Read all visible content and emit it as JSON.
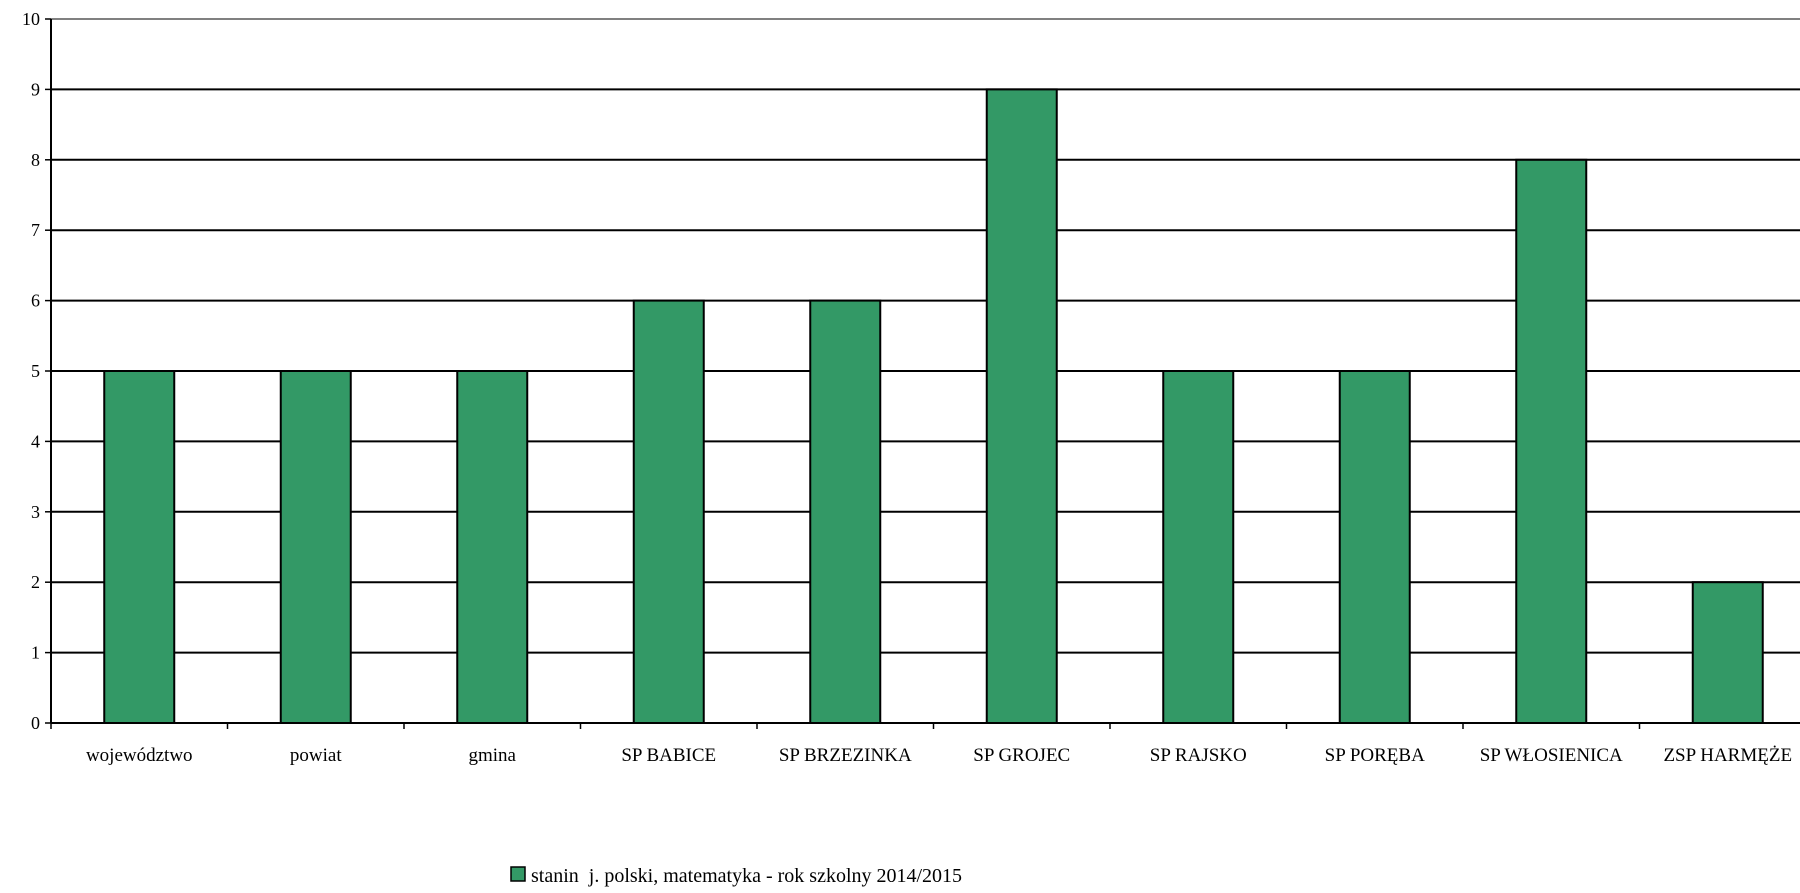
{
  "chart_data": {
    "type": "bar",
    "title": "",
    "xlabel": "",
    "ylabel": "",
    "ylim": [
      0,
      10
    ],
    "yticks": [
      0,
      1,
      2,
      3,
      4,
      5,
      6,
      7,
      8,
      9,
      10
    ],
    "grid": true,
    "legend_position": "bottom",
    "categories": [
      "województwo",
      "powiat",
      "gmina",
      "SP BABICE",
      "SP BRZEZINKA",
      "SP GROJEC",
      "SP RAJSKO",
      "SP PORĘBA",
      "SP WŁOSIENICA",
      "ZSP HARMĘŻE"
    ],
    "series": [
      {
        "name": "stanin  j. polski, matematyka - rok szkolny 2014/2015",
        "color": "#339966",
        "values": [
          5,
          5,
          5,
          6,
          6,
          9,
          5,
          5,
          8,
          2
        ]
      }
    ]
  }
}
